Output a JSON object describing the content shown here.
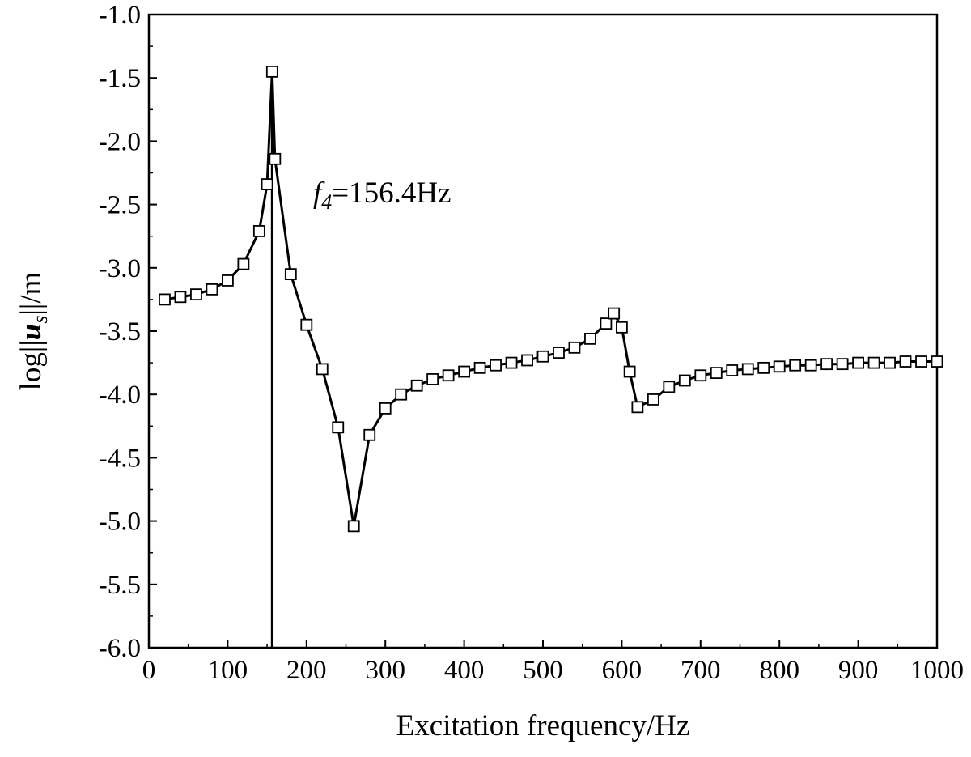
{
  "chart_data": {
    "type": "line",
    "title": "",
    "xlabel": "Excitation frequency/Hz",
    "ylabel": {
      "prefix": "log||",
      "var": "u",
      "sub": "s",
      "suffix": "||/m"
    },
    "xlim": [
      0,
      1000
    ],
    "ylim": [
      -6.0,
      -1.0
    ],
    "xticks": [
      "0",
      "100",
      "200",
      "300",
      "400",
      "500",
      "600",
      "700",
      "800",
      "900",
      "1000"
    ],
    "yticks": [
      "-1.0",
      "-1.5",
      "-2.0",
      "-2.5",
      "-3.0",
      "-3.5",
      "-4.0",
      "-4.5",
      "-5.0",
      "-5.5",
      "-6.0"
    ],
    "grid": false,
    "legend": "none",
    "marker": "open-square",
    "line_color": "#000000",
    "series": [
      {
        "x": [
          20,
          40,
          60,
          80,
          100,
          120,
          140,
          150,
          156.4,
          160,
          180,
          200,
          220,
          240,
          260,
          280,
          300,
          320,
          340,
          360,
          380,
          400,
          420,
          440,
          460,
          480,
          500,
          520,
          540,
          560,
          580,
          590,
          600,
          610,
          620,
          640,
          660,
          680,
          700,
          720,
          740,
          760,
          780,
          800,
          820,
          840,
          860,
          880,
          900,
          920,
          940,
          960,
          980,
          1000
        ],
        "y": [
          -3.25,
          -3.23,
          -3.21,
          -3.17,
          -3.1,
          -2.97,
          -2.71,
          -2.34,
          -1.45,
          -2.14,
          -3.05,
          -3.45,
          -3.8,
          -4.26,
          -5.04,
          -4.32,
          -4.11,
          -4.0,
          -3.93,
          -3.88,
          -3.85,
          -3.82,
          -3.79,
          -3.77,
          -3.75,
          -3.73,
          -3.7,
          -3.67,
          -3.63,
          -3.56,
          -3.44,
          -3.36,
          -3.47,
          -3.82,
          -4.1,
          -4.04,
          -3.94,
          -3.89,
          -3.85,
          -3.83,
          -3.81,
          -3.8,
          -3.79,
          -3.78,
          -3.77,
          -3.77,
          -3.76,
          -3.76,
          -3.75,
          -3.75,
          -3.75,
          -3.74,
          -3.74,
          -3.74
        ]
      }
    ],
    "vertical_line": {
      "x": 156.4
    },
    "annotation": {
      "var": "f",
      "sub": "4",
      "text": "=156.4Hz",
      "x": 160,
      "y": -2.51
    }
  }
}
